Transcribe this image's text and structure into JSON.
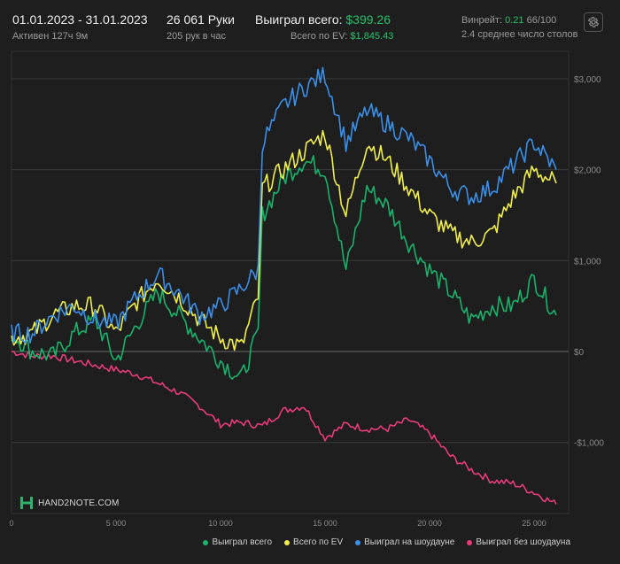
{
  "header": {
    "date_range": "01.01.2023 - 31.01.2023",
    "active": "Активен 127ч 9м",
    "hands": "26 061 Руки",
    "hands_per_hour": "205 рук в час",
    "won_label": "Выиграл всего:",
    "won_value": "$399.26",
    "ev_label": "Всего по EV:",
    "ev_value": "$1,845.43",
    "winrate_label": "Винрейт:",
    "winrate_value": "0.21",
    "winrate_rest": "66/100",
    "tables": "2.4 среднее число столов"
  },
  "brand": {
    "name": "HAND2NOTE.COM"
  },
  "colors": {
    "bg": "#1e1e1e",
    "grid": "#3a3a3a",
    "zero": "#6a6a6a",
    "total": "#19b36b",
    "ev": "#f0ee4a",
    "showdown": "#3a8fe8",
    "nonshowdown": "#e83b7a"
  },
  "icons": {
    "settings": "gear-icon",
    "brand": "hand2note-logo-icon"
  },
  "chart_data": {
    "type": "line",
    "title": "",
    "xlabel": "",
    "ylabel": "",
    "xlim": [
      0,
      26061
    ],
    "ylim": [
      -1700,
      3150
    ],
    "x_ticks": [
      0,
      5000,
      10000,
      15000,
      20000,
      25000
    ],
    "x_tick_labels": [
      "0",
      "5 000",
      "10 000",
      "15 000",
      "20 000",
      "25 000"
    ],
    "y_ticks": [
      3000,
      2000,
      1000,
      0,
      -1000
    ],
    "y_tick_labels": [
      "$3,000",
      "$2,000",
      "$1,000",
      "$0",
      "-$1,000"
    ],
    "legend_position": "bottom-right",
    "series": [
      {
        "name": "Выиграл всего",
        "key": "total",
        "x": [
          0,
          1000,
          2000,
          3000,
          4000,
          5000,
          6000,
          7000,
          8000,
          9000,
          10000,
          11000,
          11800,
          12000,
          13000,
          14000,
          15000,
          16000,
          17000,
          18000,
          19000,
          20000,
          21000,
          22000,
          23000,
          24000,
          25000,
          26061
        ],
        "values": [
          200,
          0,
          -50,
          200,
          350,
          -100,
          300,
          650,
          400,
          150,
          -100,
          -300,
          200,
          1500,
          1900,
          2100,
          2000,
          900,
          1800,
          1600,
          1200,
          900,
          650,
          350,
          500,
          500,
          800,
          400
        ]
      },
      {
        "name": "Всего по EV",
        "key": "ev",
        "x": [
          0,
          1000,
          2000,
          3000,
          4000,
          5000,
          6000,
          7000,
          8000,
          9000,
          10000,
          11000,
          11800,
          12000,
          13000,
          14000,
          15000,
          16000,
          17000,
          18000,
          19000,
          20000,
          21000,
          22000,
          23000,
          24000,
          25000,
          26061
        ],
        "values": [
          150,
          200,
          400,
          500,
          500,
          200,
          550,
          800,
          600,
          350,
          150,
          50,
          600,
          1800,
          2000,
          2200,
          2400,
          1500,
          2300,
          2100,
          1800,
          1500,
          1300,
          1200,
          1300,
          1700,
          2000,
          1850
        ]
      },
      {
        "name": "Выиграл на шоудауне",
        "key": "showdown",
        "x": [
          0,
          1000,
          2000,
          3000,
          4000,
          5000,
          6000,
          7000,
          8000,
          9000,
          10000,
          11000,
          11800,
          12000,
          13000,
          14000,
          15000,
          16000,
          17000,
          18000,
          19000,
          20000,
          21000,
          22000,
          23000,
          24000,
          25000,
          26061
        ],
        "values": [
          200,
          200,
          400,
          500,
          350,
          300,
          600,
          850,
          650,
          400,
          500,
          700,
          900,
          2300,
          2700,
          2900,
          3050,
          2300,
          2650,
          2500,
          2350,
          2100,
          1800,
          1700,
          1800,
          2050,
          2300,
          2000
        ]
      },
      {
        "name": "Выиграл без шоудауна",
        "key": "nonshowdown",
        "x": [
          0,
          1000,
          2000,
          3000,
          4000,
          5000,
          6000,
          7000,
          8000,
          9000,
          10000,
          11000,
          12000,
          13000,
          14000,
          15000,
          16000,
          17000,
          18000,
          19000,
          20000,
          21000,
          22000,
          23000,
          24000,
          25000,
          26061
        ],
        "values": [
          0,
          -50,
          -50,
          -100,
          -150,
          -200,
          -250,
          -350,
          -450,
          -600,
          -800,
          -780,
          -820,
          -650,
          -600,
          -950,
          -800,
          -850,
          -850,
          -750,
          -900,
          -1150,
          -1300,
          -1420,
          -1450,
          -1550,
          -1680
        ]
      }
    ]
  }
}
